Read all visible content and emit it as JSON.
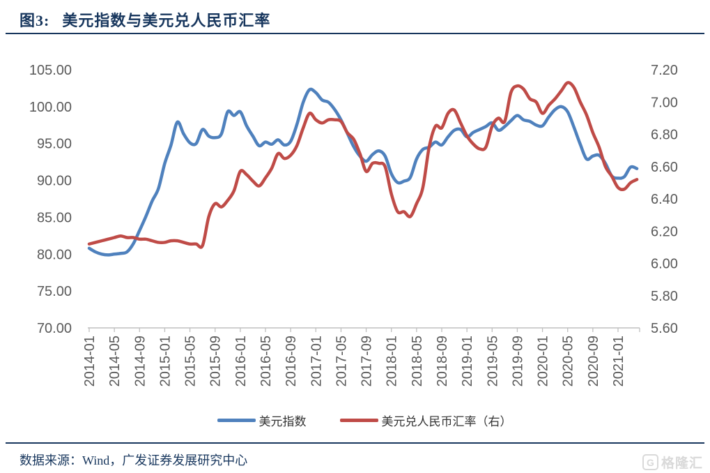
{
  "header": {
    "title_prefix": "图3:",
    "title": "美元指数与美元兑人民币汇率"
  },
  "footer": {
    "source_text": "数据来源：Wind，广发证券发展研究中心"
  },
  "watermark": {
    "icon": "G",
    "text": "格隆汇",
    "color": "#d9d9d9"
  },
  "colors": {
    "accent_navy": "#17365d",
    "axis_line": "#bfbfbf",
    "tick_text": "#595959"
  },
  "chart_data": {
    "type": "line",
    "title": "美元指数与美元兑人民币汇率",
    "grid": false,
    "legend_position": "bottom-center",
    "x": [
      "2014-01",
      "2014-02",
      "2014-03",
      "2014-04",
      "2014-05",
      "2014-06",
      "2014-07",
      "2014-08",
      "2014-09",
      "2014-10",
      "2014-11",
      "2014-12",
      "2015-01",
      "2015-02",
      "2015-03",
      "2015-04",
      "2015-05",
      "2015-06",
      "2015-07",
      "2015-08",
      "2015-09",
      "2015-10",
      "2015-11",
      "2015-12",
      "2016-01",
      "2016-02",
      "2016-03",
      "2016-04",
      "2016-05",
      "2016-06",
      "2016-07",
      "2016-08",
      "2016-09",
      "2016-10",
      "2016-11",
      "2016-12",
      "2017-01",
      "2017-02",
      "2017-03",
      "2017-04",
      "2017-05",
      "2017-06",
      "2017-07",
      "2017-08",
      "2017-09",
      "2017-10",
      "2017-11",
      "2017-12",
      "2018-01",
      "2018-02",
      "2018-03",
      "2018-04",
      "2018-05",
      "2018-06",
      "2018-07",
      "2018-08",
      "2018-09",
      "2018-10",
      "2018-11",
      "2018-12",
      "2019-01",
      "2019-02",
      "2019-03",
      "2019-04",
      "2019-05",
      "2019-06",
      "2019-07",
      "2019-08",
      "2019-09",
      "2019-10",
      "2019-11",
      "2019-12",
      "2020-01",
      "2020-02",
      "2020-03",
      "2020-04",
      "2020-05",
      "2020-06",
      "2020-07",
      "2020-08",
      "2020-09",
      "2020-10",
      "2020-11",
      "2020-12",
      "2021-01",
      "2021-02",
      "2021-03",
      "2021-04"
    ],
    "x_tick_labels": [
      "2014-01",
      "2014-05",
      "2014-09",
      "2015-01",
      "2015-05",
      "2015-09",
      "2016-01",
      "2016-05",
      "2016-09",
      "2017-01",
      "2017-05",
      "2017-09",
      "2018-01",
      "2018-05",
      "2018-09",
      "2019-01",
      "2019-05",
      "2019-09",
      "2020-01",
      "2020-05",
      "2020-09",
      "2021-01"
    ],
    "x_tick_every": 4,
    "series": [
      {
        "name": "美元指数",
        "axis": "left",
        "color": "#4f81bd",
        "values": [
          80.8,
          80.3,
          80.0,
          79.9,
          80.0,
          80.1,
          80.3,
          81.4,
          83.2,
          85.1,
          87.2,
          88.9,
          92.3,
          94.8,
          97.9,
          96.3,
          95.1,
          95.0,
          96.9,
          96.0,
          95.8,
          96.3,
          99.3,
          98.8,
          99.3,
          97.4,
          96.0,
          94.7,
          95.2,
          94.9,
          95.5,
          94.8,
          95.3,
          97.6,
          100.6,
          102.3,
          101.9,
          100.9,
          100.6,
          99.6,
          98.2,
          96.4,
          94.6,
          93.3,
          92.6,
          93.5,
          94.0,
          93.3,
          90.9,
          89.7,
          89.9,
          90.4,
          92.9,
          94.2,
          94.5,
          95.2,
          94.8,
          95.9,
          96.8,
          96.9,
          95.9,
          96.5,
          96.9,
          97.3,
          97.8,
          96.8,
          97.3,
          98.1,
          98.8,
          98.2,
          98.0,
          97.5,
          97.4,
          98.6,
          99.6,
          100.0,
          99.3,
          97.2,
          94.9,
          92.9,
          93.3,
          93.4,
          92.3,
          90.6,
          90.3,
          90.5,
          91.8,
          91.6
        ]
      },
      {
        "name": "美元兑人民币汇率（右）",
        "axis": "right",
        "color": "#bf4b47",
        "values": [
          6.12,
          6.13,
          6.14,
          6.15,
          6.16,
          6.17,
          6.16,
          6.16,
          6.15,
          6.15,
          6.14,
          6.13,
          6.13,
          6.14,
          6.14,
          6.13,
          6.12,
          6.12,
          6.11,
          6.29,
          6.37,
          6.35,
          6.39,
          6.45,
          6.57,
          6.55,
          6.51,
          6.48,
          6.53,
          6.59,
          6.68,
          6.65,
          6.67,
          6.73,
          6.84,
          6.93,
          6.89,
          6.87,
          6.89,
          6.89,
          6.88,
          6.81,
          6.77,
          6.68,
          6.57,
          6.62,
          6.62,
          6.6,
          6.43,
          6.32,
          6.32,
          6.29,
          6.37,
          6.47,
          6.72,
          6.85,
          6.84,
          6.93,
          6.95,
          6.87,
          6.79,
          6.74,
          6.71,
          6.72,
          6.85,
          6.9,
          6.88,
          7.06,
          7.1,
          7.08,
          7.02,
          7.0,
          6.93,
          6.98,
          7.02,
          7.07,
          7.12,
          7.09,
          7.0,
          6.92,
          6.81,
          6.72,
          6.6,
          6.54,
          6.47,
          6.46,
          6.5,
          6.52
        ]
      }
    ],
    "left_axis": {
      "min": 70,
      "max": 105,
      "tick_labels": [
        "105.00",
        "100.00",
        "95.00",
        "90.00",
        "85.00",
        "80.00",
        "75.00",
        "70.00"
      ]
    },
    "right_axis": {
      "min": 5.6,
      "max": 7.2,
      "tick_labels": [
        "7.20",
        "7.00",
        "6.80",
        "6.60",
        "6.40",
        "6.20",
        "6.00",
        "5.80",
        "5.60"
      ]
    },
    "legend": [
      {
        "label": "美元指数",
        "color": "#4f81bd"
      },
      {
        "label": "美元兑人民币汇率（右）",
        "color": "#bf4b47"
      }
    ]
  }
}
